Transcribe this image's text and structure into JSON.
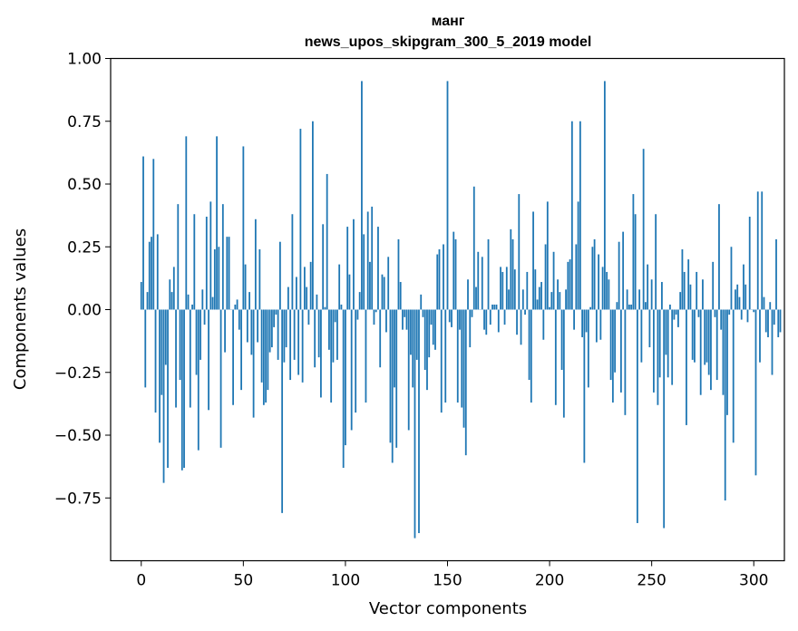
{
  "chart_data": {
    "type": "bar",
    "title_line1": "манг",
    "title_line2": "news_upos_skipgram_300_5_2019 model",
    "xlabel": "Vector components",
    "ylabel": "Components values",
    "xlim": [
      -15,
      315
    ],
    "ylim": [
      -1.0,
      1.0
    ],
    "xticks": [
      0,
      50,
      100,
      150,
      200,
      250,
      300
    ],
    "xtick_labels": [
      "0",
      "50",
      "100",
      "150",
      "200",
      "250",
      "300"
    ],
    "yticks": [
      -0.75,
      -0.5,
      -0.25,
      0.0,
      0.25,
      0.5,
      0.75,
      1.0
    ],
    "ytick_labels": [
      "−0.75",
      "−0.50",
      "−0.25",
      "0.00",
      "0.25",
      "0.50",
      "0.75",
      "1.00"
    ],
    "bar_color": "#1f77b4",
    "values": [
      0.11,
      0.61,
      -0.31,
      0.07,
      0.27,
      0.29,
      0.6,
      -0.41,
      0.3,
      -0.53,
      -0.34,
      -0.69,
      -0.22,
      -0.63,
      0.12,
      0.07,
      0.17,
      -0.39,
      0.42,
      -0.28,
      -0.64,
      -0.63,
      0.69,
      0.06,
      -0.39,
      0.02,
      0.38,
      -0.26,
      -0.56,
      -0.2,
      0.08,
      -0.06,
      0.37,
      -0.4,
      0.43,
      0.05,
      0.24,
      0.69,
      0.25,
      -0.55,
      0.42,
      -0.17,
      0.29,
      0.29,
      0.0,
      -0.38,
      0.02,
      0.04,
      -0.08,
      -0.32,
      0.65,
      0.18,
      -0.13,
      0.07,
      -0.18,
      -0.43,
      0.36,
      -0.13,
      0.24,
      -0.29,
      -0.38,
      -0.37,
      -0.32,
      -0.17,
      -0.15,
      -0.07,
      -0.02,
      -0.2,
      0.27,
      -0.81,
      -0.21,
      -0.15,
      0.09,
      -0.28,
      0.38,
      -0.2,
      0.13,
      -0.26,
      0.72,
      -0.29,
      0.17,
      0.09,
      -0.06,
      0.19,
      0.75,
      -0.23,
      0.06,
      -0.19,
      -0.35,
      0.34,
      0.01,
      0.54,
      -0.16,
      -0.37,
      -0.21,
      -0.05,
      -0.2,
      0.18,
      0.02,
      -0.63,
      -0.54,
      0.33,
      0.14,
      -0.48,
      0.36,
      -0.41,
      -0.04,
      0.07,
      0.91,
      0.3,
      -0.37,
      0.39,
      0.19,
      0.41,
      -0.06,
      -0.01,
      0.33,
      -0.23,
      0.14,
      0.13,
      -0.09,
      0.21,
      -0.53,
      -0.61,
      -0.31,
      -0.55,
      0.28,
      0.11,
      -0.08,
      -0.03,
      -0.08,
      -0.48,
      -0.18,
      -0.31,
      -0.91,
      -0.2,
      -0.89,
      0.06,
      -0.03,
      -0.24,
      -0.32,
      -0.19,
      -0.06,
      -0.14,
      -0.16,
      0.22,
      0.24,
      -0.41,
      0.26,
      -0.37,
      0.91,
      -0.05,
      -0.07,
      0.31,
      0.28,
      -0.37,
      -0.08,
      -0.39,
      -0.47,
      -0.58,
      0.12,
      -0.15,
      -0.03,
      0.49,
      0.09,
      0.23,
      0.0,
      0.21,
      -0.08,
      -0.1,
      0.28,
      -0.06,
      0.02,
      0.02,
      0.02,
      -0.09,
      0.17,
      0.15,
      -0.06,
      0.17,
      0.08,
      0.32,
      0.28,
      0.16,
      -0.1,
      0.46,
      -0.14,
      0.08,
      -0.02,
      0.15,
      -0.28,
      -0.37,
      0.39,
      0.16,
      0.04,
      0.09,
      0.11,
      -0.12,
      0.26,
      0.43,
      0.01,
      0.07,
      0.23,
      -0.38,
      0.12,
      0.07,
      -0.24,
      -0.43,
      0.08,
      0.19,
      0.2,
      0.75,
      -0.08,
      0.26,
      0.43,
      0.75,
      -0.11,
      -0.61,
      -0.09,
      -0.31,
      0.01,
      0.25,
      0.28,
      -0.13,
      0.22,
      -0.12,
      0.17,
      0.91,
      0.15,
      0.12,
      -0.28,
      -0.37,
      -0.25,
      0.03,
      0.27,
      -0.33,
      0.31,
      -0.42,
      0.08,
      0.02,
      0.02,
      0.46,
      0.38,
      -0.85,
      0.08,
      -0.21,
      0.64,
      0.03,
      0.18,
      -0.15,
      0.12,
      -0.33,
      0.38,
      -0.38,
      -0.27,
      0.11,
      -0.87,
      -0.18,
      -0.27,
      0.02,
      -0.3,
      -0.04,
      -0.02,
      -0.07,
      0.07,
      0.24,
      0.15,
      -0.46,
      0.2,
      0.1,
      -0.2,
      -0.21,
      0.15,
      -0.03,
      -0.34,
      0.12,
      -0.22,
      -0.21,
      -0.26,
      -0.32,
      0.19,
      -0.03,
      -0.28,
      0.42,
      -0.08,
      -0.34,
      -0.76,
      -0.42,
      -0.02,
      0.25,
      -0.53,
      0.08,
      0.1,
      0.05,
      -0.04,
      0.18,
      0.1,
      -0.05,
      0.37,
      0.0,
      -0.01,
      -0.66,
      0.47,
      -0.21,
      0.47,
      0.05,
      -0.09,
      -0.11,
      0.03,
      -0.26,
      -0.06,
      0.28,
      -0.11,
      -0.09
    ]
  }
}
